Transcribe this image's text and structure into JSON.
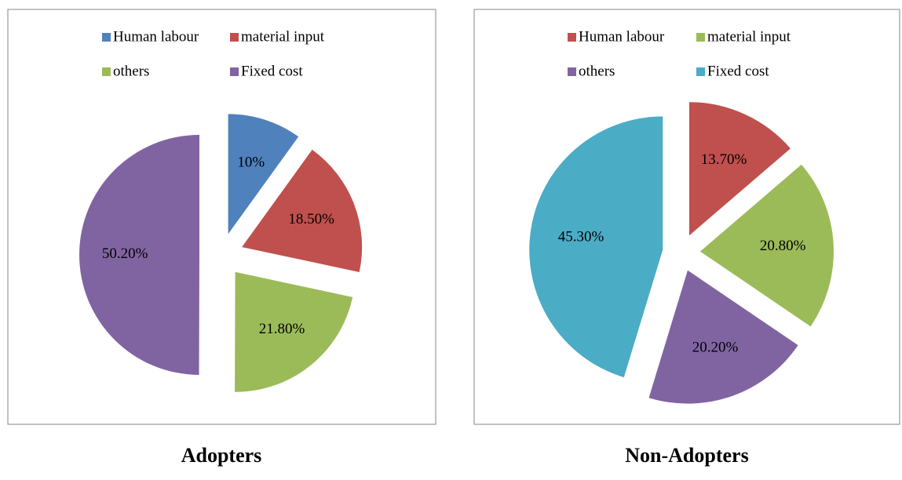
{
  "chart_data": [
    {
      "type": "pie",
      "title": "Adopters",
      "categories": [
        "Human labour",
        "material input",
        "others",
        "Fixed cost"
      ],
      "values": [
        10,
        18.5,
        21.8,
        50.2
      ],
      "value_labels": [
        "10%",
        "18.50%",
        "21.80%",
        "50.20%"
      ],
      "colors": [
        "#4f81bd",
        "#c0504d",
        "#9bbb59",
        "#8064a2"
      ]
    },
    {
      "type": "pie",
      "title": "Non-Adopters",
      "categories": [
        "Human labour",
        "material input",
        "others",
        "Fixed cost"
      ],
      "values": [
        13.7,
        20.8,
        20.2,
        45.3
      ],
      "value_labels": [
        "13.70%",
        "20.80%",
        "20.20%",
        "45.30%"
      ],
      "colors": [
        "#c0504d",
        "#9bbb59",
        "#8064a2",
        "#4bacc6"
      ]
    }
  ]
}
